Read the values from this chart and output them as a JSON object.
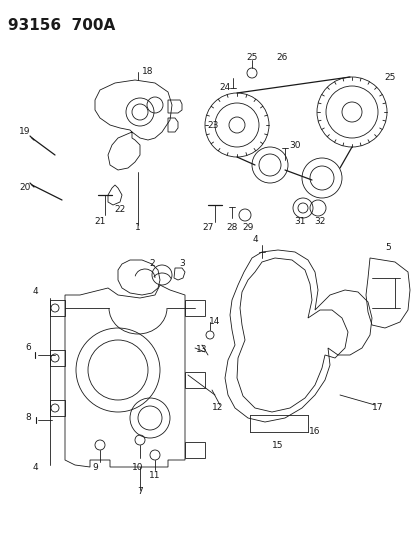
{
  "title": "93156  700A",
  "bg_color": "#ffffff",
  "line_color": "#1a1a1a",
  "title_fontsize": 11,
  "label_fontsize": 6.5,
  "fig_width": 4.14,
  "fig_height": 5.33,
  "dpi": 100
}
